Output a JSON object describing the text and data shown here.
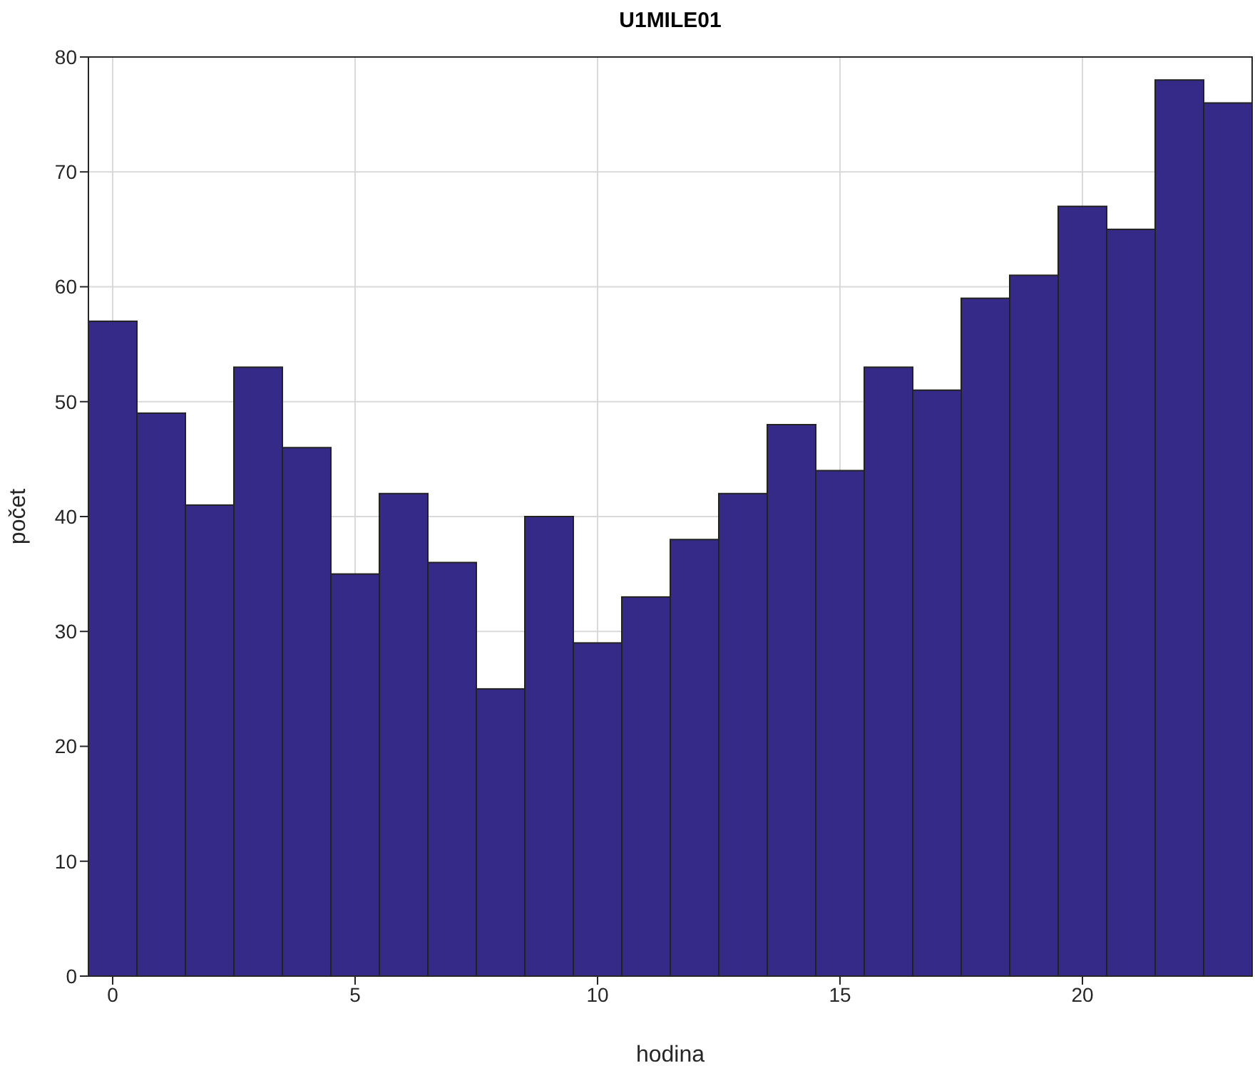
{
  "chart_data": {
    "type": "histogram",
    "title": "U1MILE01",
    "xlabel": "hodina",
    "ylabel": "počet",
    "bins": [
      -0.5,
      0.5,
      1.5,
      2.5,
      3.5,
      4.5,
      5.5,
      6.5,
      7.5,
      8.5,
      9.5,
      10.5,
      11.5,
      12.5,
      13.5,
      14.5,
      15.5,
      16.5,
      17.5,
      18.5,
      19.5,
      20.5,
      21.5,
      22.5,
      23.5
    ],
    "values": [
      57,
      49,
      41,
      53,
      46,
      35,
      42,
      36,
      25,
      40,
      29,
      33,
      38,
      42,
      48,
      44,
      53,
      51,
      59,
      61,
      67,
      65,
      78,
      76
    ],
    "color": "#352a87",
    "xlim": [
      -0.5,
      23.5
    ],
    "xticks": [
      0,
      5,
      10,
      15,
      20
    ],
    "ylim": [
      0,
      80
    ],
    "yticks": [
      0,
      10,
      20,
      30,
      40,
      50,
      60,
      70,
      80
    ],
    "grid": true
  }
}
